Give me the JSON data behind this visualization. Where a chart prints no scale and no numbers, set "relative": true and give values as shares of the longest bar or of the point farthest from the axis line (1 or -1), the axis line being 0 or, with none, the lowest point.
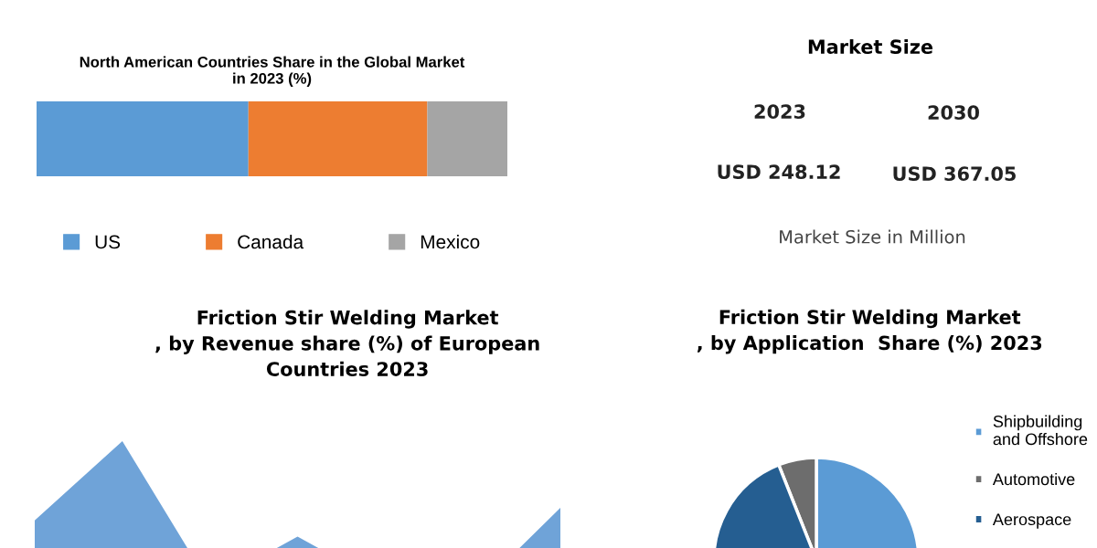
{
  "chart_data": [
    {
      "type": "bar",
      "orientation": "horizontal",
      "stacked": true,
      "relative": true,
      "title": "North American Countries Share in the Global Market\nin 2023 (%)",
      "categories": [
        null
      ],
      "legend": "bottom",
      "series": [
        {
          "name": "US",
          "color": "#5b9bd5",
          "values": [
            0.45
          ]
        },
        {
          "name": "Canada",
          "color": "#ed7d31",
          "values": [
            0.38
          ]
        },
        {
          "name": "Mexico",
          "color": "#a5a5a5",
          "values": [
            0.17
          ]
        }
      ]
    },
    {
      "type": "other",
      "title": "Market Size",
      "annotations": [
        "2023",
        "2030",
        "USD 248.12",
        "USD 367.05",
        "Market Size in Million"
      ]
    },
    {
      "type": "area",
      "relative": true,
      "title": "Friction Stir Welding Market\n, by Revenue share (%) of European\nCountries 2023",
      "categories": [
        null,
        null,
        null,
        null,
        null,
        null,
        null
      ],
      "values": [
        0.56,
        1,
        0.2,
        0.47,
        0.2,
        0.15,
        0.63
      ],
      "color": "#6fa3d8"
    },
    {
      "type": "pie",
      "title": "Friction Stir Welding Market\n, by Application  Share (%) 2023",
      "categories": [
        "Shipbuilding\nand Offshore",
        "Automotive",
        "Aerospace"
      ],
      "values": [
        50,
        6,
        44
      ],
      "colors": [
        "#5b9bd5",
        "#6d6d6d",
        "#255e91"
      ],
      "legend": "right"
    }
  ]
}
